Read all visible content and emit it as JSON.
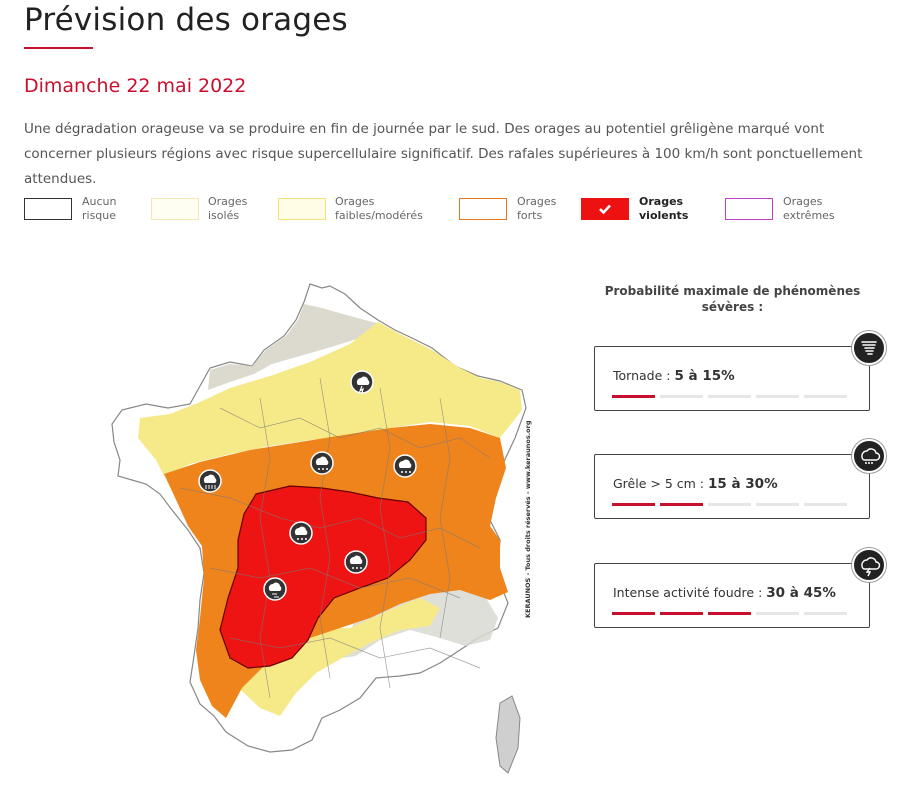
{
  "header": {
    "title": "Prévision des orages",
    "date": "Dimanche 22 mai 2022",
    "description": "Une dégradation orageuse va se produire en fin de journée par le sud. Des orages au potentiel grêligène marqué vont concerner plusieurs régions avec risque supercellulaire significatif. Des rafales supérieures à 100 km/h sont ponctuellement attendues."
  },
  "legend": [
    {
      "label": "Aucun\nrisque",
      "border": "#333333",
      "fill": "#ffffff",
      "selected": false
    },
    {
      "label": "Orages\nisolés",
      "border": "#f3e9b8",
      "fill": "#fffef3",
      "selected": false
    },
    {
      "label": "Orages\nfaibles/modérés",
      "border": "#f5e27a",
      "fill": "#fffde6",
      "selected": false
    },
    {
      "label": "Orages\nforts",
      "border": "#e8741a",
      "fill": "#ffffff",
      "selected": false
    },
    {
      "label": "Orages\nviolents",
      "border": "#ee1111",
      "fill": "#ee1111",
      "selected": true
    },
    {
      "label": "Orages\nextrêmes",
      "border": "#c03ec8",
      "fill": "#ffffff",
      "selected": false
    }
  ],
  "map": {
    "credit": "KERAUNOS - Tous droits réservés - www.keraunos.org",
    "icons": [
      "rain-storm-icon",
      "hail-storm-icon",
      "hail-storm-icon",
      "hail-storm-icon",
      "hail-storm-icon",
      "hail-storm-icon",
      "heavy-rain-storm-icon"
    ]
  },
  "probability": {
    "title": "Probabilité maximale de phénomènes sévères :",
    "items": [
      {
        "label": "Tornade :",
        "value": "5 à 15%",
        "level": 1,
        "icon": "tornado-icon"
      },
      {
        "label": "Grêle > 5 cm :",
        "value": "15 à 30%",
        "level": 2,
        "icon": "hail-icon"
      },
      {
        "label": "Intense activité foudre :",
        "value": "30 à 45%",
        "level": 3,
        "icon": "lightning-icon"
      }
    ],
    "total_levels": 5,
    "accent": "#c8102e"
  }
}
